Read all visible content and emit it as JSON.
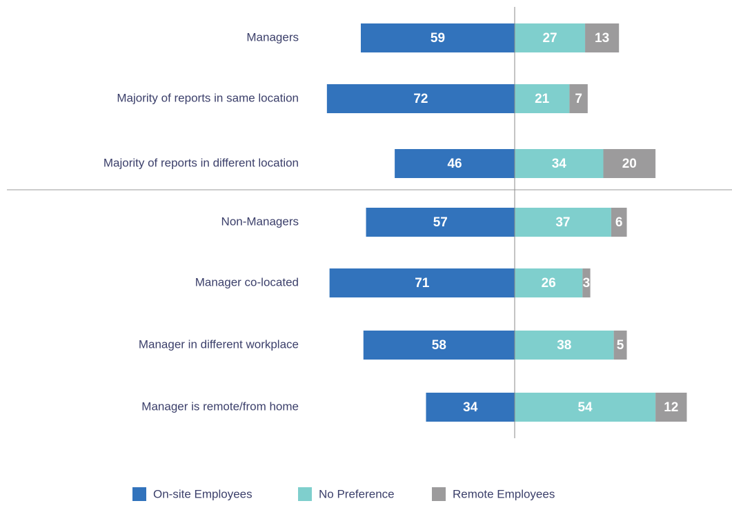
{
  "chart_data": {
    "type": "diverging-bar",
    "categories": [
      "Managers",
      "Majority of reports in same location",
      "Majority of reports in different location",
      "Non-Managers",
      "Manager co-located",
      "Manager in different workplace",
      "Manager is remote/from home"
    ],
    "series": [
      {
        "name": "On-site Employees",
        "color": "#3273bc",
        "values": [
          59,
          72,
          46,
          57,
          71,
          58,
          34
        ]
      },
      {
        "name": "No Preference",
        "color": "#7fcfcd",
        "values": [
          27,
          21,
          34,
          37,
          26,
          38,
          54
        ]
      },
      {
        "name": "Remote Employees",
        "color": "#9c9b9c",
        "values": [
          13,
          7,
          20,
          6,
          3,
          5,
          12
        ]
      }
    ],
    "legend": "bottom"
  }
}
